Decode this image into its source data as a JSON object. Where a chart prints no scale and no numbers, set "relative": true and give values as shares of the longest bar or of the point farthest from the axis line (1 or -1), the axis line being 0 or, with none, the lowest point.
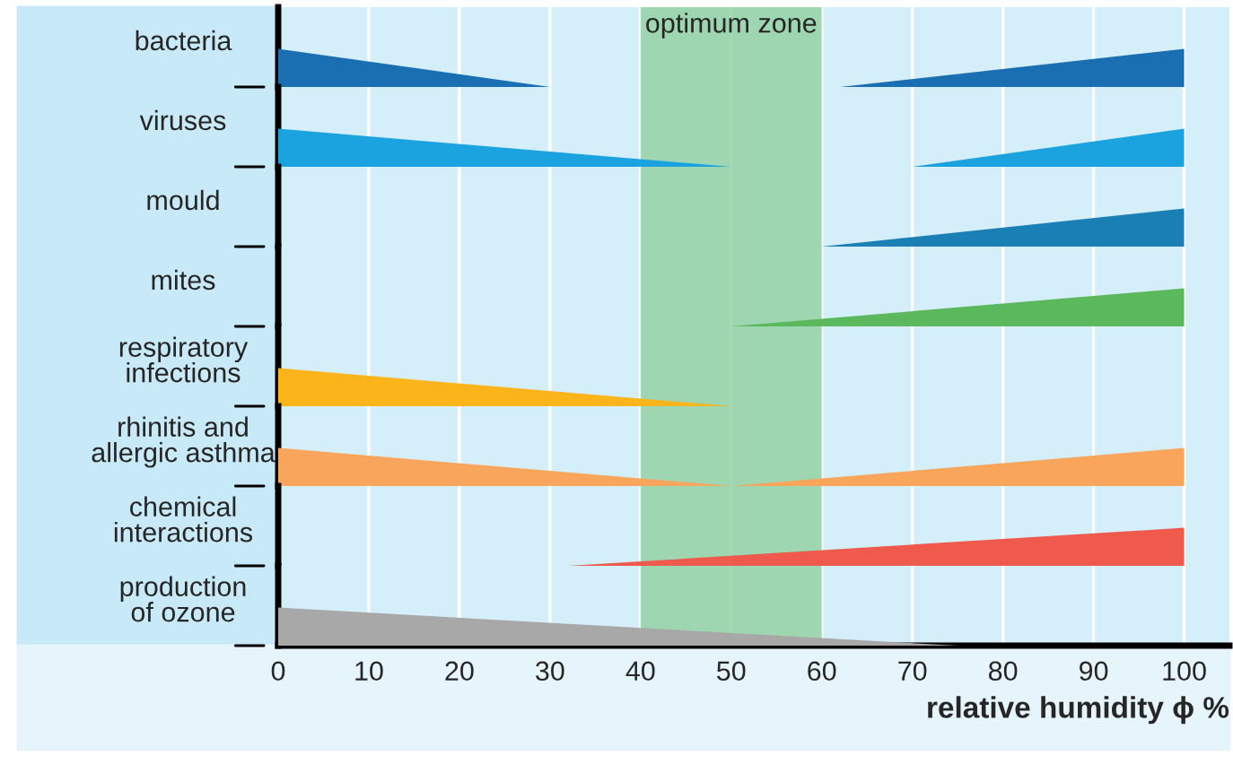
{
  "chart_data": [
    {
      "type": "area",
      "relative": true,
      "ylabel": "bacteria",
      "xlim": [
        0,
        105
      ],
      "xticks": [
        0,
        10,
        20,
        30,
        40,
        50,
        60,
        70,
        80,
        90,
        100
      ],
      "grid": "x",
      "tick_labels": false,
      "bands": [
        {
          "axis": "x",
          "from": 40,
          "to": 60,
          "label": "optimum zone",
          "color": "#8fcf9f"
        }
      ],
      "series": [
        {
          "color": "#1a6fb3",
          "x": [
            0,
            30,
            62,
            100
          ],
          "values": [
            1,
            0,
            0,
            1
          ]
        }
      ]
    },
    {
      "type": "area",
      "relative": true,
      "ylabel": "viruses",
      "xlim": [
        0,
        105
      ],
      "xticks": [
        0,
        10,
        20,
        30,
        40,
        50,
        60,
        70,
        80,
        90,
        100
      ],
      "grid": "x",
      "tick_labels": false,
      "bands": [
        {
          "axis": "x",
          "from": 40,
          "to": 60,
          "color": "#8fcf9f"
        }
      ],
      "series": [
        {
          "color": "#1ba3e0",
          "x": [
            0,
            50,
            70,
            100
          ],
          "values": [
            1,
            0,
            0,
            1
          ]
        }
      ]
    },
    {
      "type": "area",
      "relative": true,
      "ylabel": "mould",
      "xlim": [
        0,
        105
      ],
      "xticks": [
        0,
        10,
        20,
        30,
        40,
        50,
        60,
        70,
        80,
        90,
        100
      ],
      "grid": "x",
      "tick_labels": false,
      "bands": [
        {
          "axis": "x",
          "from": 40,
          "to": 60,
          "color": "#8fcf9f"
        }
      ],
      "series": [
        {
          "color": "#1a7fb5",
          "x": [
            60,
            100
          ],
          "values": [
            0,
            1
          ]
        }
      ]
    },
    {
      "type": "area",
      "relative": true,
      "ylabel": "mites",
      "xlim": [
        0,
        105
      ],
      "xticks": [
        0,
        10,
        20,
        30,
        40,
        50,
        60,
        70,
        80,
        90,
        100
      ],
      "grid": "x",
      "tick_labels": false,
      "bands": [
        {
          "axis": "x",
          "from": 40,
          "to": 60,
          "color": "#8fcf9f"
        }
      ],
      "series": [
        {
          "color": "#5cb85c",
          "x": [
            50,
            100
          ],
          "values": [
            0,
            1
          ]
        }
      ]
    },
    {
      "type": "area",
      "relative": true,
      "ylabel": "respiratory\ninfections",
      "xlim": [
        0,
        105
      ],
      "xticks": [
        0,
        10,
        20,
        30,
        40,
        50,
        60,
        70,
        80,
        90,
        100
      ],
      "grid": "x",
      "tick_labels": false,
      "bands": [
        {
          "axis": "x",
          "from": 40,
          "to": 60,
          "color": "#8fcf9f"
        }
      ],
      "series": [
        {
          "color": "#fbb41a",
          "x": [
            0,
            50
          ],
          "values": [
            1,
            0
          ]
        }
      ]
    },
    {
      "type": "area",
      "relative": true,
      "ylabel": "rhinitis and\nallergic asthma",
      "xlim": [
        0,
        105
      ],
      "xticks": [
        0,
        10,
        20,
        30,
        40,
        50,
        60,
        70,
        80,
        90,
        100
      ],
      "grid": "x",
      "tick_labels": false,
      "bands": [
        {
          "axis": "x",
          "from": 40,
          "to": 60,
          "color": "#8fcf9f"
        }
      ],
      "series": [
        {
          "color": "#f9a55b",
          "x": [
            0,
            50,
            100
          ],
          "values": [
            1,
            0,
            1
          ]
        }
      ]
    },
    {
      "type": "area",
      "relative": true,
      "ylabel": "chemical\ninteractions",
      "xlim": [
        0,
        105
      ],
      "xticks": [
        0,
        10,
        20,
        30,
        40,
        50,
        60,
        70,
        80,
        90,
        100
      ],
      "grid": "x",
      "tick_labels": false,
      "bands": [
        {
          "axis": "x",
          "from": 40,
          "to": 60,
          "color": "#8fcf9f"
        }
      ],
      "series": [
        {
          "color": "#ef5a4c",
          "x": [
            32,
            100
          ],
          "values": [
            0,
            1
          ]
        }
      ]
    },
    {
      "type": "area",
      "relative": true,
      "ylabel": "production\nof ozone",
      "xlabel": "relative humidity ϕ %",
      "xlim": [
        0,
        105
      ],
      "xticks": [
        0,
        10,
        20,
        30,
        40,
        50,
        60,
        70,
        80,
        90,
        100
      ],
      "grid": "x",
      "tick_labels": "x",
      "bands": [
        {
          "axis": "x",
          "from": 40,
          "to": 60,
          "color": "#8fcf9f"
        }
      ],
      "series": [
        {
          "color": "#a8a8a8",
          "x": [
            0,
            75
          ],
          "values": [
            1,
            0
          ]
        }
      ]
    }
  ]
}
